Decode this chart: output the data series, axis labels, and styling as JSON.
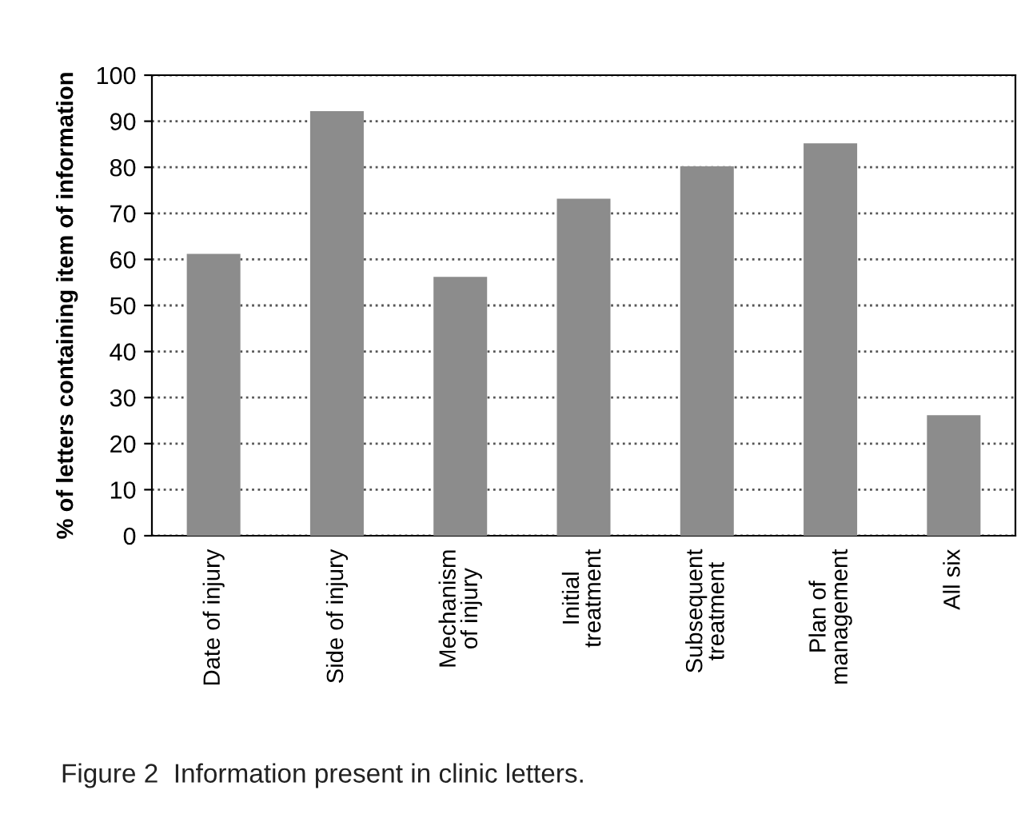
{
  "chart_data": {
    "type": "bar",
    "ylabel": "% of letters containing item of information",
    "categories": [
      "Date of injury",
      "Side of injury",
      "Mechanism\nof injury",
      "Initial\ntreatment",
      "Subsequent\ntreatment",
      "Plan of\nmanagement",
      "All six"
    ],
    "values": [
      61,
      92,
      56,
      73,
      80,
      85,
      26
    ],
    "color": "#8c8c8c",
    "ylim": [
      0,
      100
    ],
    "yticks": [
      0,
      10,
      20,
      30,
      40,
      50,
      60,
      70,
      80,
      90,
      100
    ],
    "grid": "y",
    "annotations": [
      "Figure 2  Information present in clinic letters."
    ]
  }
}
